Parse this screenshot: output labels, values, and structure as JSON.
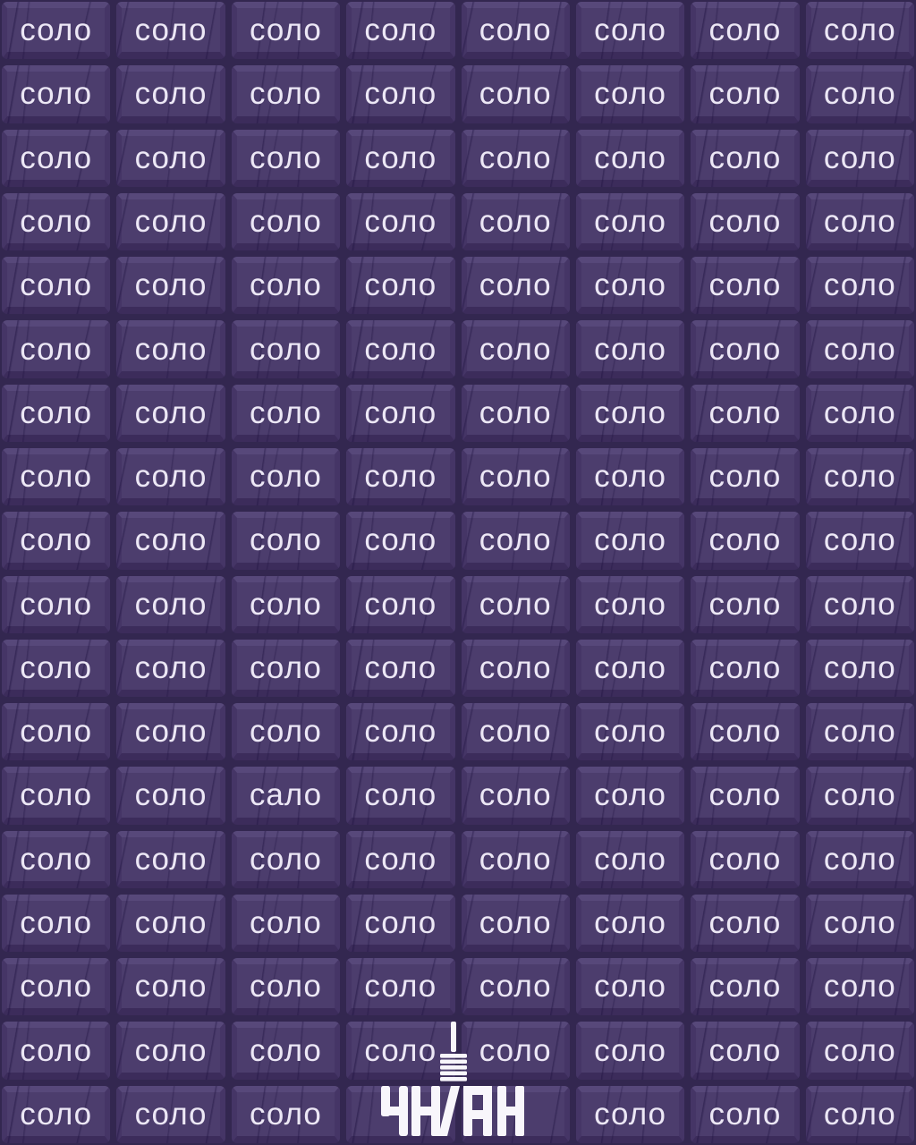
{
  "puzzle": {
    "repeated_word": "соло",
    "odd_word": "сало",
    "odd_word_row": 13,
    "odd_word_col": 3,
    "rows": 18,
    "cols": 8
  },
  "grid": {
    "cells": [
      [
        "соло",
        "соло",
        "соло",
        "соло",
        "соло",
        "соло",
        "соло",
        "соло"
      ],
      [
        "соло",
        "соло",
        "соло",
        "соло",
        "соло",
        "соло",
        "соло",
        "соло"
      ],
      [
        "соло",
        "соло",
        "соло",
        "соло",
        "соло",
        "соло",
        "соло",
        "соло"
      ],
      [
        "соло",
        "соло",
        "соло",
        "соло",
        "соло",
        "соло",
        "соло",
        "соло"
      ],
      [
        "соло",
        "соло",
        "соло",
        "соло",
        "соло",
        "соло",
        "соло",
        "соло"
      ],
      [
        "соло",
        "соло",
        "соло",
        "соло",
        "соло",
        "соло",
        "соло",
        "соло"
      ],
      [
        "соло",
        "соло",
        "соло",
        "соло",
        "соло",
        "соло",
        "соло",
        "соло"
      ],
      [
        "соло",
        "соло",
        "соло",
        "соло",
        "соло",
        "соло",
        "соло",
        "соло"
      ],
      [
        "соло",
        "соло",
        "соло",
        "соло",
        "соло",
        "соло",
        "соло",
        "соло"
      ],
      [
        "соло",
        "соло",
        "соло",
        "соло",
        "соло",
        "соло",
        "соло",
        "соло"
      ],
      [
        "соло",
        "соло",
        "соло",
        "соло",
        "соло",
        "соло",
        "соло",
        "соло"
      ],
      [
        "соло",
        "соло",
        "соло",
        "соло",
        "соло",
        "соло",
        "соло",
        "соло"
      ],
      [
        "соло",
        "соло",
        "сало",
        "соло",
        "соло",
        "соло",
        "соло",
        "соло"
      ],
      [
        "соло",
        "соло",
        "соло",
        "соло",
        "соло",
        "соло",
        "соло",
        "соло"
      ],
      [
        "соло",
        "соло",
        "соло",
        "соло",
        "соло",
        "соло",
        "соло",
        "соло"
      ],
      [
        "соло",
        "соло",
        "соло",
        "соло",
        "соло",
        "соло",
        "соло",
        "соло"
      ],
      [
        "соло",
        "соло",
        "соло",
        "соло",
        "соло",
        "соло",
        "соло",
        "соло"
      ],
      [
        "соло",
        "соло",
        "соло",
        "",
        "",
        "соло",
        "соло",
        "соло"
      ]
    ]
  },
  "logo": {
    "text": "УНІАН",
    "icon": "microphone-icon"
  },
  "colors": {
    "background": "#332750",
    "tile_face": "#4c3d6d",
    "tile_bevel_top": "#57487a",
    "tile_bevel_bottom": "#3c2c5b",
    "tile_bevel_side": "#453566",
    "scratch": "#2a1c4e",
    "word_text": "#ece7f5",
    "logo": "#f8f6fb"
  }
}
